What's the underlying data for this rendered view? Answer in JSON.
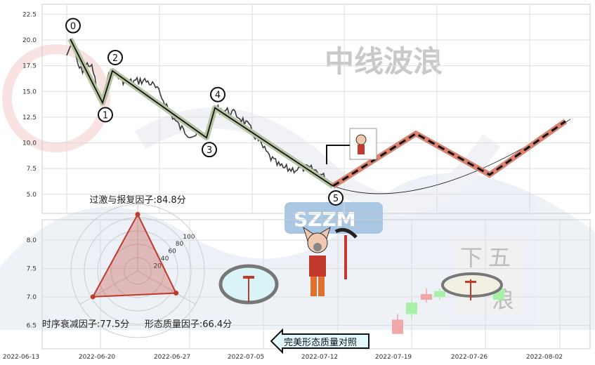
{
  "watermark": {
    "text": "中线波浪",
    "badge": "SZZM",
    "side_text": [
      "下",
      "五",
      "浪"
    ]
  },
  "chart_data": [
    {
      "type": "line",
      "panel": "top",
      "ylim": [
        4,
        23.5
      ],
      "yticks": [
        "5.0",
        "7.5",
        "10.0",
        "12.5",
        "15.0",
        "17.5",
        "20.0",
        "22.5"
      ],
      "grid": true,
      "wave_points": [
        {
          "label": "0",
          "value": 20.1
        },
        {
          "label": "1",
          "value": 13.9
        },
        {
          "label": "2",
          "value": 17.0
        },
        {
          "label": "3",
          "value": 10.5
        },
        {
          "label": "4",
          "value": 13.4
        },
        {
          "label": "5",
          "value": 5.8
        }
      ],
      "projection": [
        5.8,
        10.9,
        6.9,
        12.1
      ],
      "colors": {
        "price": "#3a3a3a",
        "wave": "#111111",
        "wave_glow": "#b7c4a2",
        "projection": "#d9826f"
      }
    },
    {
      "type": "candlestick",
      "panel": "bottom",
      "ylim": [
        6.1,
        8.4
      ],
      "yticks": [
        "6.5",
        "7.0",
        "7.5",
        "8.0"
      ],
      "xticks": [
        "2022-06-13",
        "2022-06-20",
        "2022-06-27",
        "2022-07-05",
        "2022-07-12",
        "2022-07-19",
        "2022-07-26",
        "2022-08-02"
      ],
      "grid": true,
      "colors": {
        "up": "#f0a8a8",
        "down": "#a8f0a8"
      }
    },
    {
      "type": "radar",
      "rticks": [
        "20",
        "40",
        "60",
        "80",
        "100"
      ],
      "factors": [
        {
          "label": "过激与报复因子:84.8分",
          "value": 84.8
        },
        {
          "label": "形态质量因子:66.4分",
          "value": 66.4
        },
        {
          "label": "时序衰减因子:77.5分",
          "value": 77.5
        }
      ],
      "color": "#c0392b"
    }
  ],
  "compare_button": {
    "label": "完美形态质量对照"
  }
}
